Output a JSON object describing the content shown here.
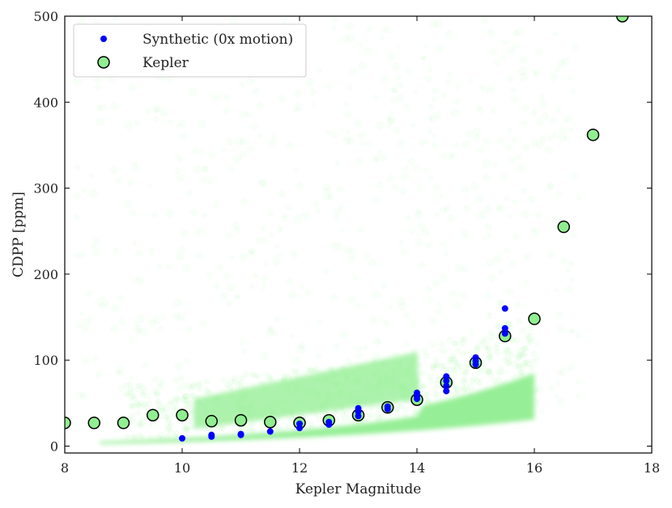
{
  "chart_data": {
    "type": "scatter",
    "title": "",
    "xlabel": "Kepler Magnitude",
    "ylabel": "CDPP [ppm]",
    "xlim": [
      8,
      18
    ],
    "ylim": [
      -8,
      500
    ],
    "xticks": [
      8,
      10,
      12,
      14,
      16,
      18
    ],
    "yticks": [
      0,
      100,
      200,
      300,
      400,
      500
    ],
    "grid": false,
    "legend_position": "top-left",
    "background_density_color": "#90ee90",
    "series": [
      {
        "name": "Synthetic (0x motion)",
        "marker": "dot",
        "color": "#0000ff",
        "points": [
          [
            10,
            9
          ],
          [
            10.5,
            11
          ],
          [
            10.5,
            13
          ],
          [
            11,
            13
          ],
          [
            11,
            14
          ],
          [
            11.5,
            17
          ],
          [
            12,
            21
          ],
          [
            12,
            26
          ],
          [
            12.5,
            25
          ],
          [
            12.5,
            28
          ],
          [
            13,
            35
          ],
          [
            13,
            40
          ],
          [
            13,
            44
          ],
          [
            13.5,
            43
          ],
          [
            13.5,
            46
          ],
          [
            14,
            55
          ],
          [
            14,
            58
          ],
          [
            14,
            62
          ],
          [
            14.5,
            64
          ],
          [
            14.5,
            70
          ],
          [
            14.5,
            76
          ],
          [
            14.5,
            81
          ],
          [
            15,
            95
          ],
          [
            15,
            99
          ],
          [
            15,
            103
          ],
          [
            15.5,
            131
          ],
          [
            15.5,
            137
          ],
          [
            15.5,
            160
          ]
        ]
      },
      {
        "name": "Kepler",
        "marker": "circle",
        "color": "#90ee90",
        "edge_color": "#000000",
        "points": [
          [
            8,
            27
          ],
          [
            8.5,
            27
          ],
          [
            9,
            27
          ],
          [
            9.5,
            36
          ],
          [
            10,
            36
          ],
          [
            10.5,
            29
          ],
          [
            11,
            30
          ],
          [
            11.5,
            28
          ],
          [
            12,
            27
          ],
          [
            12.5,
            30
          ],
          [
            13,
            36
          ],
          [
            13.5,
            45
          ],
          [
            14,
            54
          ],
          [
            14.5,
            74
          ],
          [
            15,
            97
          ],
          [
            15.5,
            128
          ],
          [
            16,
            148
          ],
          [
            16.5,
            255
          ],
          [
            17,
            362
          ],
          [
            17.5,
            500
          ]
        ]
      }
    ]
  }
}
